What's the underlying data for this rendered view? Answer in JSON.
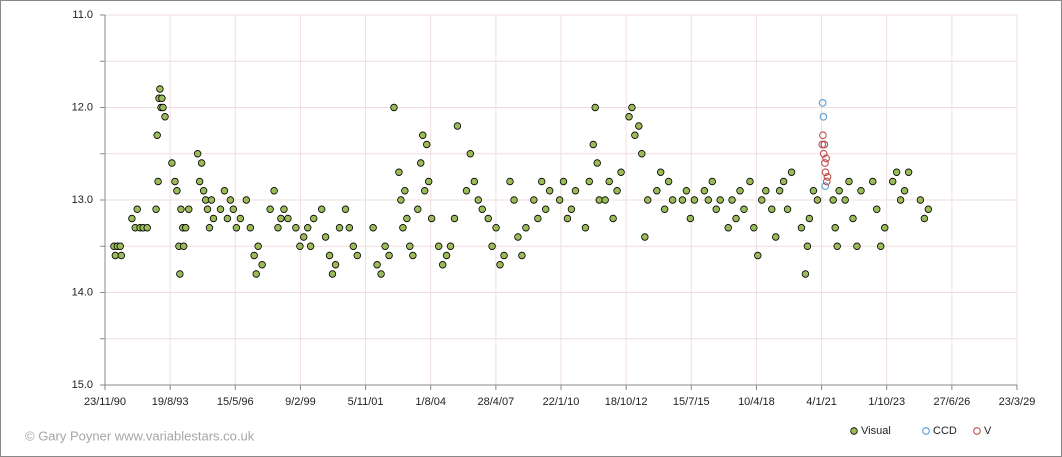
{
  "chart_data": {
    "type": "scatter",
    "copyright": "© Gary Poyner www.variablestars.co.uk",
    "xlim": [
      "1990-11-23",
      "2029-03-23"
    ],
    "xticks": [
      {
        "value": "1990-11-23",
        "label": "23/11/90"
      },
      {
        "value": "1993-08-19",
        "label": "19/8/93"
      },
      {
        "value": "1996-05-15",
        "label": "15/5/96"
      },
      {
        "value": "1999-02-09",
        "label": "9/2/99"
      },
      {
        "value": "2001-11-05",
        "label": "5/11/01"
      },
      {
        "value": "2004-08-01",
        "label": "1/8/04"
      },
      {
        "value": "2007-04-28",
        "label": "28/4/07"
      },
      {
        "value": "2010-01-22",
        "label": "22/1/10"
      },
      {
        "value": "2012-10-18",
        "label": "18/10/12"
      },
      {
        "value": "2015-07-15",
        "label": "15/7/15"
      },
      {
        "value": "2018-04-10",
        "label": "10/4/18"
      },
      {
        "value": "2021-01-04",
        "label": "4/1/21"
      },
      {
        "value": "2023-10-01",
        "label": "1/10/23"
      },
      {
        "value": "2026-06-27",
        "label": "27/6/26"
      },
      {
        "value": "2029-03-23",
        "label": "23/3/29"
      }
    ],
    "ylim": [
      15,
      11
    ],
    "yticks": [
      {
        "value": 11,
        "label": "11.0"
      },
      {
        "value": 12,
        "label": "12.0"
      },
      {
        "value": 13,
        "label": "13.0"
      },
      {
        "value": 14,
        "label": "14.0"
      },
      {
        "value": 15,
        "label": "15.0"
      }
    ],
    "yminorticks": [
      11.5,
      12.5,
      13.5,
      14.5
    ],
    "grid": true,
    "legend": "bottom-right",
    "series": [
      {
        "name": "Visual",
        "color": "#9bbb59",
        "filled": true,
        "x": [
          "1991-04-10",
          "1991-05-01",
          "1991-06-01",
          "1991-07-15",
          "1991-08-01",
          "1992-01-10",
          "1992-03-01",
          "1992-04-01",
          "1992-05-15",
          "1992-07-01",
          "1992-09-01",
          "1993-01-15",
          "1993-02-01",
          "1993-02-15",
          "1993-03-01",
          "1993-03-15",
          "1993-04-01",
          "1993-04-15",
          "1993-05-01",
          "1993-06-01",
          "1993-09-15",
          "1993-11-01",
          "1993-12-01",
          "1994-01-01",
          "1994-01-15",
          "1994-02-01",
          "1994-03-01",
          "1994-03-15",
          "1994-04-15",
          "1994-06-01",
          "1994-10-15",
          "1994-11-15",
          "1994-12-15",
          "1995-01-15",
          "1995-02-15",
          "1995-03-15",
          "1995-04-15",
          "1995-05-15",
          "1995-06-15",
          "1995-10-01",
          "1995-12-01",
          "1996-01-15",
          "1996-03-01",
          "1996-04-15",
          "1996-06-01",
          "1996-08-01",
          "1996-11-01",
          "1997-01-01",
          "1997-03-01",
          "1997-04-01",
          "1997-05-01",
          "1997-07-01",
          "1997-11-01",
          "1998-01-01",
          "1998-03-01",
          "1998-04-15",
          "1998-06-01",
          "1998-08-01",
          "1998-12-01",
          "1999-02-01",
          "1999-04-01",
          "1999-06-01",
          "1999-07-15",
          "1999-09-01",
          "2000-01-01",
          "2000-03-01",
          "2000-05-01",
          "2000-06-15",
          "2000-08-01",
          "2000-10-01",
          "2001-01-01",
          "2001-03-01",
          "2001-05-01",
          "2001-07-01",
          "2002-03-01",
          "2002-05-01",
          "2002-07-01",
          "2002-09-01",
          "2002-11-01",
          "2003-01-15",
          "2003-04-01",
          "2003-05-01",
          "2003-06-01",
          "2003-07-01",
          "2003-08-01",
          "2003-09-15",
          "2003-11-01",
          "2004-01-15",
          "2004-03-01",
          "2004-04-01",
          "2004-05-01",
          "2004-06-01",
          "2004-07-01",
          "2004-08-15",
          "2004-12-01",
          "2005-02-01",
          "2005-04-01",
          "2005-06-01",
          "2005-08-01",
          "2005-09-15",
          "2006-02-01",
          "2006-04-01",
          "2006-06-01",
          "2006-08-01",
          "2006-10-01",
          "2007-01-01",
          "2007-03-01",
          "2007-05-01",
          "2007-07-01",
          "2007-09-01",
          "2007-12-01",
          "2008-02-01",
          "2008-04-01",
          "2008-06-01",
          "2008-08-01",
          "2008-12-01",
          "2009-02-01",
          "2009-04-01",
          "2009-06-01",
          "2009-08-01",
          "2010-01-01",
          "2010-03-01",
          "2010-05-01",
          "2010-07-01",
          "2010-09-01",
          "2011-02-01",
          "2011-04-01",
          "2011-06-01",
          "2011-07-01",
          "2011-08-01",
          "2011-09-01",
          "2011-12-01",
          "2012-02-01",
          "2012-04-01",
          "2012-06-01",
          "2012-08-01",
          "2012-12-01",
          "2013-01-15",
          "2013-03-01",
          "2013-05-01",
          "2013-06-15",
          "2013-08-01",
          "2013-09-15",
          "2014-02-01",
          "2014-04-01",
          "2014-06-01",
          "2014-08-01",
          "2014-10-01",
          "2015-03-01",
          "2015-05-01",
          "2015-07-01",
          "2015-09-01",
          "2016-02-01",
          "2016-04-01",
          "2016-06-01",
          "2016-08-01",
          "2016-10-01",
          "2017-02-01",
          "2017-04-01",
          "2017-06-01",
          "2017-08-01",
          "2017-10-01",
          "2018-01-01",
          "2018-03-01",
          "2018-05-01",
          "2018-07-01",
          "2018-09-01",
          "2018-12-01",
          "2019-02-01",
          "2019-04-01",
          "2019-06-01",
          "2019-08-01",
          "2019-10-01",
          "2020-03-01",
          "2020-05-01",
          "2020-06-01",
          "2020-07-01",
          "2020-09-01",
          "2020-11-01",
          "2021-07-01",
          "2021-08-01",
          "2021-09-01",
          "2021-10-01",
          "2022-01-01",
          "2022-03-01",
          "2022-05-01",
          "2022-07-01",
          "2022-09-01",
          "2023-03-01",
          "2023-05-01",
          "2023-07-01",
          "2023-09-01",
          "2024-01-01",
          "2024-03-01",
          "2024-05-01",
          "2024-07-01",
          "2024-09-01",
          "2025-03-01",
          "2025-05-01",
          "2025-07-01"
        ],
        "values": [
          13.5,
          13.6,
          13.5,
          13.5,
          13.6,
          13.2,
          13.3,
          13.1,
          13.3,
          13.3,
          13.3,
          13.1,
          12.3,
          12.8,
          11.9,
          11.8,
          12.0,
          11.9,
          12.0,
          12.1,
          12.6,
          12.8,
          12.9,
          13.5,
          13.8,
          13.1,
          13.3,
          13.5,
          13.3,
          13.1,
          12.5,
          12.8,
          12.6,
          12.9,
          13.0,
          13.1,
          13.3,
          13.0,
          13.2,
          13.1,
          12.9,
          13.2,
          13.0,
          13.1,
          13.3,
          13.2,
          13.0,
          13.3,
          13.6,
          13.8,
          13.5,
          13.7,
          13.1,
          12.9,
          13.3,
          13.2,
          13.1,
          13.2,
          13.3,
          13.5,
          13.4,
          13.3,
          13.5,
          13.2,
          13.1,
          13.4,
          13.6,
          13.8,
          13.7,
          13.3,
          13.1,
          13.3,
          13.5,
          13.6,
          13.3,
          13.7,
          13.8,
          13.5,
          13.6,
          12.0,
          12.7,
          13.0,
          13.3,
          12.9,
          13.2,
          13.5,
          13.6,
          13.1,
          12.6,
          12.3,
          12.9,
          12.4,
          12.8,
          13.2,
          13.5,
          13.7,
          13.6,
          13.5,
          13.2,
          12.2,
          12.9,
          12.5,
          12.8,
          13.0,
          13.1,
          13.2,
          13.5,
          13.3,
          13.7,
          13.6,
          12.8,
          13.0,
          13.4,
          13.6,
          13.3,
          13.0,
          13.2,
          12.8,
          13.1,
          12.9,
          13.0,
          12.8,
          13.2,
          13.1,
          12.9,
          13.3,
          12.8,
          12.4,
          12.0,
          12.6,
          13.0,
          13.0,
          12.8,
          13.2,
          12.9,
          12.7,
          12.1,
          12.0,
          12.3,
          12.2,
          12.5,
          13.4,
          13.0,
          12.9,
          12.7,
          13.1,
          12.8,
          13.0,
          13.0,
          12.9,
          13.2,
          13.0,
          12.9,
          13.0,
          12.8,
          13.1,
          13.0,
          13.3,
          13.0,
          13.2,
          12.9,
          13.1,
          12.8,
          13.3,
          13.6,
          13.0,
          12.9,
          13.1,
          13.4,
          12.9,
          12.8,
          13.1,
          12.7,
          13.3,
          13.8,
          13.5,
          13.2,
          12.9,
          13.0,
          13.0,
          13.3,
          13.5,
          12.9,
          13.0,
          12.8,
          13.2,
          13.5,
          12.9,
          12.8,
          13.1,
          13.5,
          13.3,
          12.8,
          12.7,
          13.0,
          12.9,
          12.7,
          13.0,
          13.2,
          13.1
        ]
      },
      {
        "name": "CCD",
        "color": "#5b9bd5",
        "filled": false,
        "x": [
          "2021-01-20",
          "2021-02-01",
          "2021-02-15",
          "2021-03-01"
        ],
        "values": [
          11.95,
          12.1,
          12.4,
          12.85
        ]
      },
      {
        "name": "V",
        "color": "#c0504d",
        "filled": false,
        "x": [
          "2021-01-15",
          "2021-01-25",
          "2021-02-05",
          "2021-02-15",
          "2021-02-25",
          "2021-03-05",
          "2021-03-15",
          "2021-03-25",
          "2021-04-05"
        ],
        "values": [
          12.4,
          12.3,
          12.5,
          12.4,
          12.6,
          12.7,
          12.55,
          12.8,
          12.75
        ]
      }
    ]
  }
}
